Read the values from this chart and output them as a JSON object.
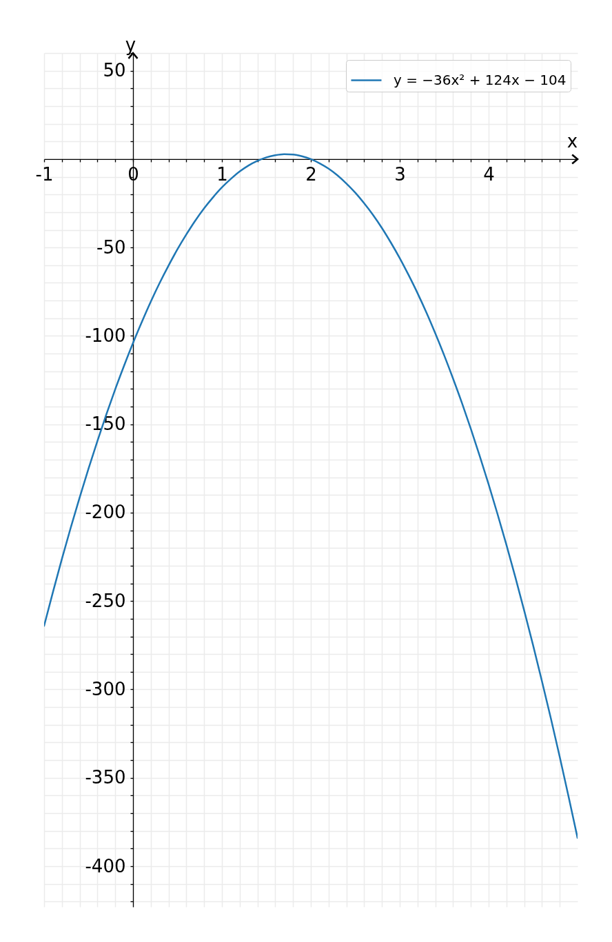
{
  "chart_data": {
    "type": "line",
    "xlabel": "x",
    "ylabel": "y",
    "x": [
      -1,
      -0.9,
      -0.8,
      -0.7,
      -0.6,
      -0.5,
      -0.4,
      -0.3,
      -0.2,
      -0.1,
      0,
      0.1,
      0.2,
      0.3,
      0.4,
      0.5,
      0.6,
      0.7,
      0.8,
      0.9,
      1,
      1.1,
      1.2,
      1.3,
      1.4,
      1.5,
      1.6,
      1.7,
      1.8,
      1.9,
      2,
      2.1,
      2.2,
      2.3,
      2.4,
      2.5,
      2.6,
      2.7,
      2.8,
      2.9,
      3,
      3.1,
      3.2,
      3.3,
      3.4,
      3.5,
      3.6,
      3.7,
      3.8,
      3.9,
      4,
      4.1,
      4.2,
      4.3,
      4.4,
      4.5,
      4.6,
      4.7,
      4.8,
      4.9,
      5
    ],
    "series": [
      {
        "name": "y = −36x² + 124x − 104",
        "color": "#1f77b4",
        "values": [
          -264,
          -244.8,
          -226.2,
          -208.4,
          -191.4,
          -175,
          -159.4,
          -144.4,
          -130.2,
          -116.8,
          -104,
          -92,
          -80.6,
          -70,
          -60.2,
          -51,
          -42.6,
          -34.8,
          -27.8,
          -21.6,
          -16,
          -11.2,
          -7,
          -3.6,
          -1,
          1,
          2.2,
          2.8,
          2.6,
          1.6,
          0,
          -2.4,
          -5.4,
          -9.2,
          -13.8,
          -19,
          -25,
          -31.6,
          -39,
          -47.2,
          -56,
          -65.6,
          -75.8,
          -86.8,
          -98.6,
          -111,
          -124.2,
          -138,
          -152.6,
          -168,
          -184,
          -200.8,
          -218.2,
          -236.4,
          -255.4,
          -275,
          -295.4,
          -316.4,
          -338.2,
          -360.8,
          -384
        ]
      }
    ],
    "xlim": [
      -1,
      5
    ],
    "ylim": [
      -423,
      60
    ],
    "xticks": [
      -1,
      {
        "value": -0.8,
        "label": null
      },
      {
        "value": -0.6,
        "label": null
      },
      {
        "value": -0.4,
        "label": null
      },
      {
        "value": -0.2,
        "label": null
      },
      0,
      {
        "value": 0.2,
        "label": null
      },
      {
        "value": 0.4,
        "label": null
      },
      {
        "value": 0.6,
        "label": null
      },
      {
        "value": 0.8,
        "label": null
      },
      1,
      {
        "value": 1.2,
        "label": null
      },
      {
        "value": 1.4,
        "label": null
      },
      {
        "value": 1.6,
        "label": null
      },
      {
        "value": 1.8,
        "label": null
      },
      2,
      {
        "value": 2.2,
        "label": null
      },
      {
        "value": 2.4,
        "label": null
      },
      {
        "value": 2.6,
        "label": null
      },
      {
        "value": 2.8,
        "label": null
      },
      3,
      {
        "value": 3.2,
        "label": null
      },
      {
        "value": 3.4,
        "label": null
      },
      {
        "value": 3.6,
        "label": null
      },
      {
        "value": 3.8,
        "label": null
      },
      4,
      {
        "value": 4.2,
        "label": null
      },
      {
        "value": 4.4,
        "label": null
      },
      {
        "value": 4.6,
        "label": null
      },
      {
        "value": 4.8,
        "label": null
      }
    ],
    "yticks": [
      {
        "value": -420,
        "label": null
      },
      {
        "value": -410,
        "label": null
      },
      -400,
      {
        "value": -390,
        "label": null
      },
      {
        "value": -380,
        "label": null
      },
      {
        "value": -370,
        "label": null
      },
      {
        "value": -360,
        "label": null
      },
      -350,
      {
        "value": -340,
        "label": null
      },
      {
        "value": -330,
        "label": null
      },
      {
        "value": -320,
        "label": null
      },
      {
        "value": -310,
        "label": null
      },
      -300,
      {
        "value": -290,
        "label": null
      },
      {
        "value": -280,
        "label": null
      },
      {
        "value": -270,
        "label": null
      },
      {
        "value": -260,
        "label": null
      },
      -250,
      {
        "value": -240,
        "label": null
      },
      {
        "value": -230,
        "label": null
      },
      {
        "value": -220,
        "label": null
      },
      {
        "value": -210,
        "label": null
      },
      -200,
      {
        "value": -190,
        "label": null
      },
      {
        "value": -180,
        "label": null
      },
      {
        "value": -170,
        "label": null
      },
      {
        "value": -160,
        "label": null
      },
      -150,
      {
        "value": -140,
        "label": null
      },
      {
        "value": -130,
        "label": null
      },
      {
        "value": -120,
        "label": null
      },
      {
        "value": -110,
        "label": null
      },
      -100,
      {
        "value": -90,
        "label": null
      },
      {
        "value": -80,
        "label": null
      },
      {
        "value": -70,
        "label": null
      },
      {
        "value": -60,
        "label": null
      },
      -50,
      {
        "value": -40,
        "label": null
      },
      {
        "value": -30,
        "label": null
      },
      {
        "value": -20,
        "label": null
      },
      {
        "value": -10,
        "label": null
      },
      {
        "value": 0,
        "label": null
      },
      {
        "value": 10,
        "label": null
      },
      {
        "value": 20,
        "label": null
      },
      {
        "value": 30,
        "label": null
      },
      {
        "value": 40,
        "label": null
      },
      50,
      {
        "value": 60,
        "label": null
      }
    ],
    "grid": true,
    "legend": "top right",
    "marker": "none",
    "line_style": "solid"
  }
}
